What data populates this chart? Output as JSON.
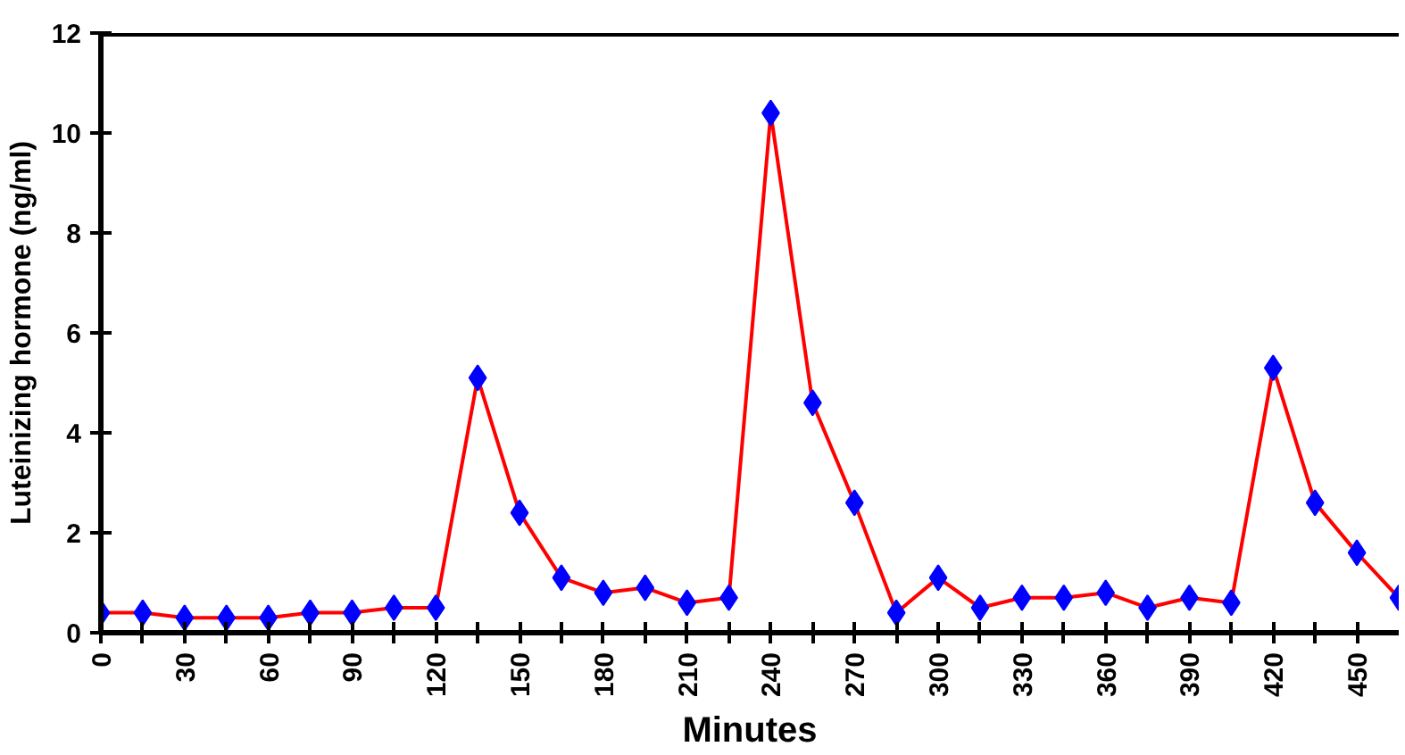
{
  "chart_data": {
    "type": "line",
    "xlabel": "Minutes",
    "ylabel": "Luteinizing hormone (ng/ml)",
    "x": [
      0,
      15,
      30,
      45,
      60,
      75,
      90,
      105,
      120,
      135,
      150,
      165,
      180,
      195,
      210,
      225,
      240,
      255,
      270,
      285,
      300,
      315,
      330,
      345,
      360,
      375,
      390,
      405,
      420,
      435,
      450,
      465
    ],
    "series": [
      {
        "color": "#ff0000",
        "values": [
          0.4,
          0.4,
          0.3,
          0.3,
          0.3,
          0.4,
          0.4,
          0.5,
          0.5,
          5.1,
          2.4,
          1.1,
          0.8,
          0.9,
          0.6,
          0.7,
          10.4,
          4.6,
          2.6,
          0.4,
          1.1,
          0.5,
          0.7,
          0.7,
          0.8,
          0.5,
          0.7,
          0.6,
          5.3,
          2.6,
          1.6,
          0.7
        ]
      }
    ],
    "marker": "diamond",
    "grid": false,
    "xlim": [
      0,
      465
    ],
    "ylim": [
      0,
      12
    ],
    "xticks": [
      0,
      {
        "value": 15,
        "label": null
      },
      30,
      {
        "value": 45,
        "label": null
      },
      60,
      {
        "value": 75,
        "label": null
      },
      90,
      {
        "value": 105,
        "label": null
      },
      120,
      {
        "value": 135,
        "label": null
      },
      150,
      {
        "value": 165,
        "label": null
      },
      180,
      {
        "value": 195,
        "label": null
      },
      210,
      {
        "value": 225,
        "label": null
      },
      240,
      {
        "value": 255,
        "label": null
      },
      270,
      {
        "value": 285,
        "label": null
      },
      300,
      {
        "value": 315,
        "label": null
      },
      330,
      {
        "value": 345,
        "label": null
      },
      360,
      {
        "value": 375,
        "label": null
      },
      390,
      {
        "value": 405,
        "label": null
      },
      420,
      {
        "value": 435,
        "label": null
      },
      450
    ],
    "yticks": [
      0,
      2,
      4,
      6,
      8,
      10,
      12
    ]
  }
}
